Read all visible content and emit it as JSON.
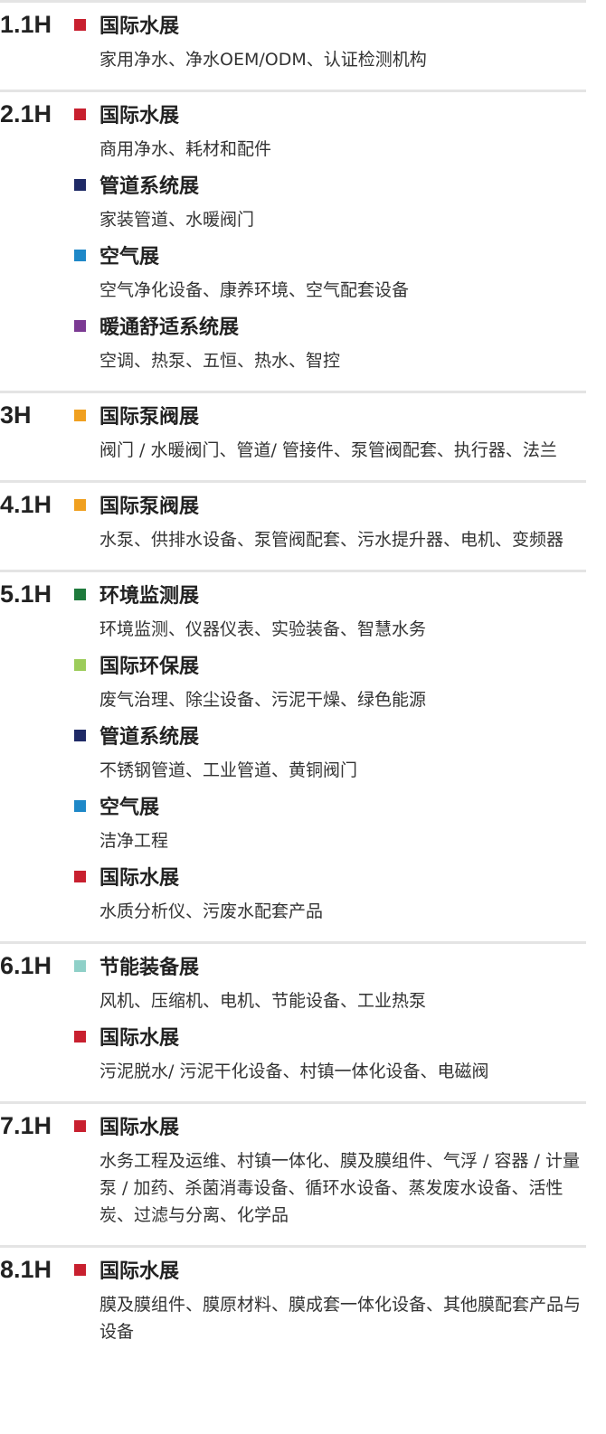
{
  "halls": [
    {
      "hall": "1.1H",
      "exhibitions": [
        {
          "name": "国际水展",
          "color": "#c8202f",
          "items": "家用净水、净水OEM/ODM、认证检测机构"
        }
      ]
    },
    {
      "hall": "2.1H",
      "exhibitions": [
        {
          "name": "国际水展",
          "color": "#c8202f",
          "items": "商用净水、耗材和配件"
        },
        {
          "name": "管道系统展",
          "color": "#1f2a66",
          "items": "家装管道、水暖阀门"
        },
        {
          "name": "空气展",
          "color": "#1e88c8",
          "items": "空气净化设备、康养环境、空气配套设备"
        },
        {
          "name": "暖通舒适系统展",
          "color": "#7b3a93",
          "items": "空调、热泵、五恒、热水、智控"
        }
      ]
    },
    {
      "hall": "3H",
      "exhibitions": [
        {
          "name": "国际泵阀展",
          "color": "#f0a020",
          "items": "阀门 / 水暖阀门、管道/ 管接件、泵管阀配套、执行器、法兰"
        }
      ]
    },
    {
      "hall": "4.1H",
      "exhibitions": [
        {
          "name": "国际泵阀展",
          "color": "#f0a020",
          "items": "水泵、供排水设备、泵管阀配套、污水提升器、电机、变频器"
        }
      ]
    },
    {
      "hall": "5.1H",
      "exhibitions": [
        {
          "name": "环境监测展",
          "color": "#1e7a3c",
          "items": "环境监测、仪器仪表、实验装备、智慧水务"
        },
        {
          "name": "国际环保展",
          "color": "#9ccc5a",
          "items": "废气治理、除尘设备、污泥干燥、绿色能源"
        },
        {
          "name": "管道系统展",
          "color": "#1f2a66",
          "items": "不锈钢管道、工业管道、黄铜阀门"
        },
        {
          "name": "空气展",
          "color": "#1e88c8",
          "items": "洁净工程"
        },
        {
          "name": "国际水展",
          "color": "#c8202f",
          "items": "水质分析仪、污废水配套产品"
        }
      ]
    },
    {
      "hall": "6.1H",
      "exhibitions": [
        {
          "name": "节能装备展",
          "color": "#8fd0c8",
          "items": "风机、压缩机、电机、节能设备、工业热泵"
        },
        {
          "name": "国际水展",
          "color": "#c8202f",
          "items": "污泥脱水/ 污泥干化设备、村镇一体化设备、电磁阀"
        }
      ]
    },
    {
      "hall": "7.1H",
      "exhibitions": [
        {
          "name": "国际水展",
          "color": "#c8202f",
          "items": "水务工程及运维、村镇一体化、膜及膜组件、气浮 / 容器 / 计量泵 / 加药、杀菌消毒设备、循环水设备、蒸发废水设备、活性炭、过滤与分离、化学品"
        }
      ]
    },
    {
      "hall": "8.1H",
      "exhibitions": [
        {
          "name": "国际水展",
          "color": "#c8202f",
          "items": "膜及膜组件、膜原材料、膜成套一体化设备、其他膜配套产品与设备"
        }
      ]
    }
  ]
}
